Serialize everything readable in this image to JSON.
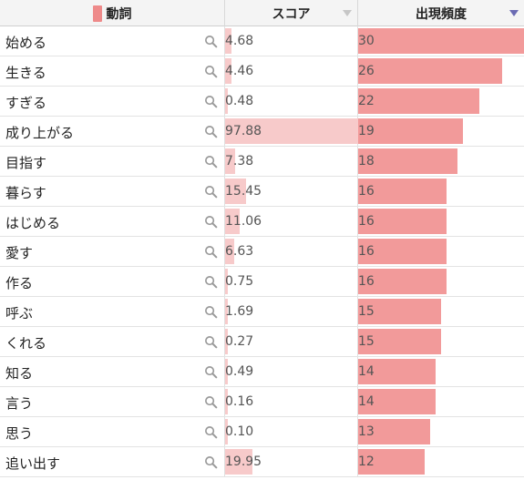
{
  "header": {
    "verb_label": "動詞",
    "score_label": "スコア",
    "freq_label": "出現頻度",
    "sorted_column": "出現頻度",
    "sort_direction": "descending"
  },
  "colors": {
    "legend_swatch": "#ee8a8a",
    "score_bar": "#f7caca",
    "freq_bar": "#f29a9a",
    "sort_active": "#6b6bb3"
  },
  "icons": {
    "row_action": "search-icon"
  },
  "rows": [
    {
      "verb": "始める",
      "score": "4.68",
      "freq": "30"
    },
    {
      "verb": "生きる",
      "score": "4.46",
      "freq": "26"
    },
    {
      "verb": "すぎる",
      "score": "0.48",
      "freq": "22"
    },
    {
      "verb": "成り上がる",
      "score": "97.88",
      "freq": "19"
    },
    {
      "verb": "目指す",
      "score": "7.38",
      "freq": "18"
    },
    {
      "verb": "暮らす",
      "score": "15.45",
      "freq": "16"
    },
    {
      "verb": "はじめる",
      "score": "11.06",
      "freq": "16"
    },
    {
      "verb": "愛す",
      "score": "6.63",
      "freq": "16"
    },
    {
      "verb": "作る",
      "score": "0.75",
      "freq": "16"
    },
    {
      "verb": "呼ぶ",
      "score": "1.69",
      "freq": "15"
    },
    {
      "verb": "くれる",
      "score": "0.27",
      "freq": "15"
    },
    {
      "verb": "知る",
      "score": "0.49",
      "freq": "14"
    },
    {
      "verb": "言う",
      "score": "0.16",
      "freq": "14"
    },
    {
      "verb": "思う",
      "score": "0.10",
      "freq": "13"
    },
    {
      "verb": "追い出す",
      "score": "19.95",
      "freq": "12"
    }
  ]
}
